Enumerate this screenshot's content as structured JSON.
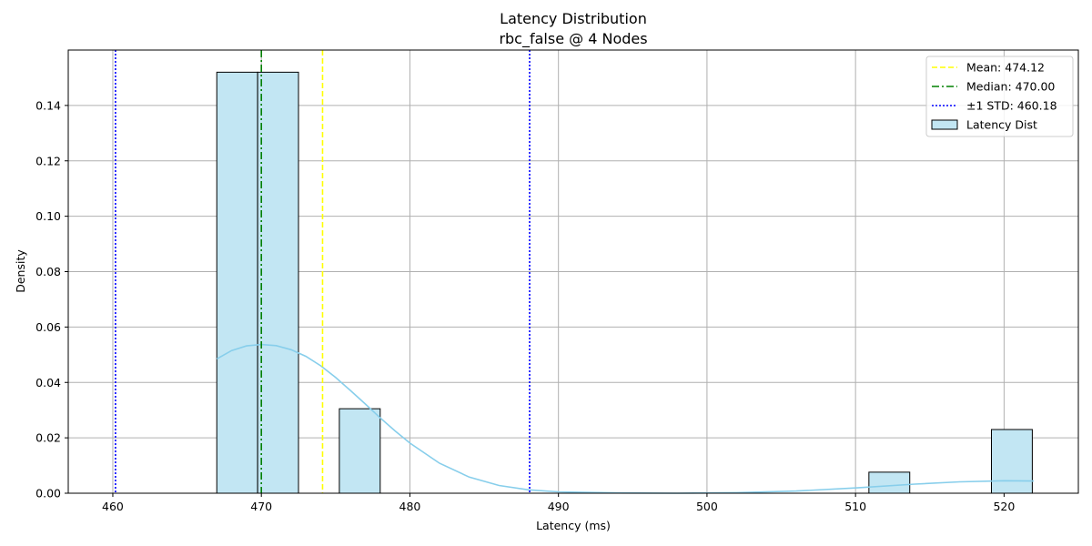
{
  "chart_data": {
    "type": "bar",
    "title": "Latency Distribution",
    "subtitle": "rbc_false @ 4 Nodes",
    "xlabel": "Latency (ms)",
    "ylabel": "Density",
    "xlim": [
      457,
      525
    ],
    "ylim": [
      0,
      0.16
    ],
    "xticks": [
      460,
      470,
      480,
      490,
      500,
      510,
      520
    ],
    "yticks": [
      0.0,
      0.02,
      0.04,
      0.06,
      0.08,
      0.1,
      0.12,
      0.14
    ],
    "grid": true,
    "legend_position": "top-right",
    "bins": [
      {
        "x0": 467.0,
        "x1": 469.75,
        "density": 0.152
      },
      {
        "x0": 469.75,
        "x1": 472.5,
        "density": 0.152
      },
      {
        "x0": 475.25,
        "x1": 478.0,
        "density": 0.0305
      },
      {
        "x0": 510.9,
        "x1": 513.65,
        "density": 0.0076
      },
      {
        "x0": 519.15,
        "x1": 521.9,
        "density": 0.023
      }
    ],
    "kde": {
      "name": "",
      "x": [
        467,
        468,
        469,
        470,
        471,
        472,
        473,
        474,
        475,
        476,
        477,
        478,
        479,
        480,
        482,
        484,
        486,
        488,
        490,
        494,
        498,
        502,
        506,
        510,
        514,
        517,
        520,
        522
      ],
      "y": [
        0.0485,
        0.0515,
        0.0532,
        0.0537,
        0.0533,
        0.0518,
        0.0494,
        0.046,
        0.0418,
        0.0371,
        0.0322,
        0.0272,
        0.0225,
        0.0181,
        0.0108,
        0.0058,
        0.0028,
        0.0012,
        0.0005,
        0.0001,
        0.0,
        0.0002,
        0.0008,
        0.0019,
        0.0033,
        0.0041,
        0.0045,
        0.0044
      ]
    },
    "lines": [
      {
        "name": "Mean: 474.12",
        "x": 474.12,
        "color": "#ffff00",
        "style": "dashed"
      },
      {
        "name": "Median: 470.00",
        "x": 470.0,
        "color": "#008000",
        "style": "dashdot"
      },
      {
        "name": "±1 STD: 460.18",
        "x": 460.18,
        "color": "#0000ff",
        "style": "dotted"
      },
      {
        "name": "",
        "x": 488.06,
        "color": "#0000ff",
        "style": "dotted"
      }
    ],
    "histogram_legend": "Latency Dist",
    "colors": {
      "bar_fill": "#c2e6f3",
      "bar_edge": "#000000",
      "kde": "#87ceeb",
      "grid": "#b0b0b0"
    }
  }
}
